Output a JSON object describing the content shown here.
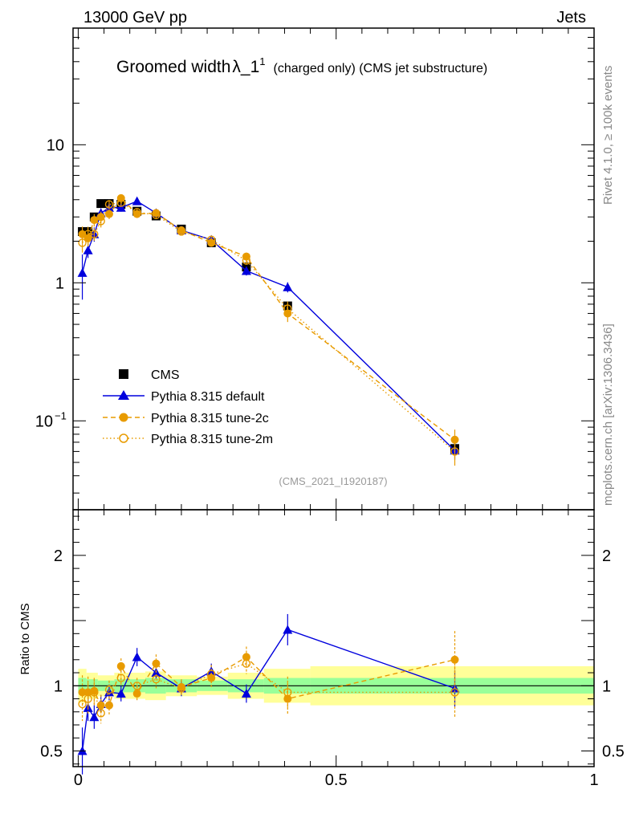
{
  "header": {
    "energy_label": "13000 GeV pp",
    "category_label": "Jets"
  },
  "side_labels": {
    "rivet": "Rivet 4.1.0, ≥ 100k events",
    "mcplots": "mcplots.cern.ch [arXiv:1306.3436]"
  },
  "chart_data": {
    "type": "scatter",
    "title": {
      "main": "Groomed width",
      "lambda": "λ_1",
      "superscript": "1",
      "suffix": "(charged only) (CMS jet substructure)"
    },
    "analysis_tag": "(CMS_2021_I1920187)",
    "xlim": [
      -0.01,
      1.0
    ],
    "main_ylim": [
      0.0227,
      70
    ],
    "main_yscale": "log",
    "main_yticks": [
      {
        "value": 10,
        "label": "10"
      },
      {
        "value": 1,
        "label": "1"
      },
      {
        "value": 0.1,
        "label": "10",
        "exp": "−1"
      }
    ],
    "ratio_ylabel": "Ratio to CMS",
    "ratio_ylim": [
      0.38,
      2.35
    ],
    "ratio_yticks": [
      {
        "value": 2,
        "label": "2"
      },
      {
        "value": 1,
        "label": "1"
      },
      {
        "value": 0.5,
        "label": "0.5"
      }
    ],
    "xticks": [
      {
        "value": 0,
        "label": "0"
      },
      {
        "value": 0.5,
        "label": "0.5"
      },
      {
        "value": 1,
        "label": "1"
      }
    ],
    "x": [
      0.008,
      0.019,
      0.031,
      0.044,
      0.06,
      0.083,
      0.114,
      0.151,
      0.2,
      0.258,
      0.326,
      0.406,
      0.73
    ],
    "reference": {
      "name": "CMS",
      "values": [
        2.35,
        2.35,
        3.0,
        3.75,
        3.75,
        3.7,
        3.3,
        3.05,
        2.45,
        1.95,
        1.3,
        0.68,
        0.063
      ],
      "band_green": [
        [
          0.0,
          0.016,
          0.06
        ],
        [
          0.016,
          0.038,
          0.05
        ],
        [
          0.038,
          0.07,
          0.04
        ],
        [
          0.07,
          0.13,
          0.05
        ],
        [
          0.13,
          0.17,
          0.06
        ],
        [
          0.17,
          0.23,
          0.05
        ],
        [
          0.23,
          0.29,
          0.04
        ],
        [
          0.29,
          0.36,
          0.05
        ],
        [
          0.36,
          0.45,
          0.06
        ],
        [
          0.45,
          1.0,
          0.06
        ]
      ],
      "band_yellow": [
        [
          0.0,
          0.016,
          0.13
        ],
        [
          0.016,
          0.038,
          0.1
        ],
        [
          0.038,
          0.07,
          0.08
        ],
        [
          0.07,
          0.13,
          0.1
        ],
        [
          0.13,
          0.17,
          0.11
        ],
        [
          0.17,
          0.23,
          0.08
        ],
        [
          0.23,
          0.29,
          0.07
        ],
        [
          0.29,
          0.36,
          0.1
        ],
        [
          0.36,
          0.45,
          0.13
        ],
        [
          0.45,
          1.0,
          0.15
        ]
      ]
    },
    "series": [
      {
        "name": "Pythia 8.315 default",
        "color": "#0000dd",
        "marker": "triangle",
        "line": "solid",
        "values": [
          1.18,
          1.72,
          2.25,
          3.2,
          3.5,
          3.5,
          3.9,
          3.2,
          2.4,
          2.05,
          1.22,
          0.93,
          0.061
        ],
        "ratio": [
          0.5,
          0.83,
          0.76,
          0.86,
          0.95,
          0.94,
          1.22,
          1.1,
          0.98,
          1.11,
          0.94,
          1.43,
          0.98
        ],
        "ratio_err": [
          0.18,
          0.1,
          0.09,
          0.07,
          0.06,
          0.06,
          0.07,
          0.05,
          0.06,
          0.06,
          0.07,
          0.12,
          0.14
        ]
      },
      {
        "name": "Pythia 8.315 tune-2c",
        "color": "#e89b00",
        "marker": "circle",
        "line": "dashed",
        "values": [
          2.25,
          2.1,
          2.85,
          3.0,
          3.15,
          4.1,
          3.15,
          3.2,
          2.4,
          1.95,
          1.55,
          0.6,
          0.073
        ],
        "ratio": [
          0.95,
          0.95,
          0.96,
          0.85,
          0.85,
          1.15,
          0.94,
          1.17,
          0.99,
          1.06,
          1.22,
          0.9,
          1.2
        ],
        "ratio_err": [
          0.13,
          0.12,
          0.1,
          0.08,
          0.07,
          0.06,
          0.06,
          0.07,
          0.06,
          0.07,
          0.08,
          0.12,
          0.22
        ]
      },
      {
        "name": "Pythia 8.315 tune-2m",
        "color": "#e89b00",
        "marker": "open-circle",
        "line": "dotted",
        "values": [
          1.95,
          2.25,
          2.25,
          2.8,
          3.7,
          3.8,
          3.25,
          3.1,
          2.35,
          2.05,
          1.45,
          0.65,
          0.06
        ],
        "ratio": [
          0.86,
          0.9,
          0.95,
          0.79,
          0.97,
          1.06,
          1.0,
          1.05,
          0.98,
          1.09,
          1.17,
          0.95,
          0.95
        ],
        "ratio_err": [
          0.13,
          0.12,
          0.1,
          0.08,
          0.07,
          0.06,
          0.06,
          0.07,
          0.06,
          0.07,
          0.08,
          0.12,
          0.2
        ]
      }
    ]
  }
}
